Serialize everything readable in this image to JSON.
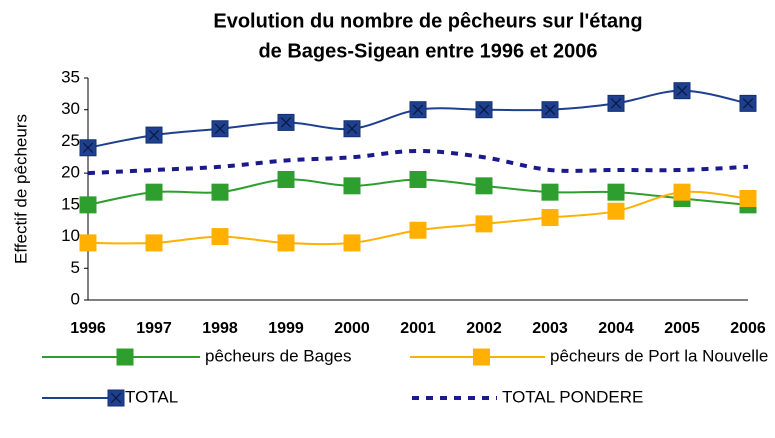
{
  "chart_data": {
    "type": "line",
    "title": [
      "Evolution du nombre de pêcheurs sur l'étang",
      "de Bages-Sigean entre 1996 et 2006"
    ],
    "y_label": "Effectif de pêcheurs",
    "categories": [
      "1996",
      "1997",
      "1998",
      "1999",
      "2000",
      "2001",
      "2002",
      "2003",
      "2004",
      "2005",
      "2006"
    ],
    "series": [
      {
        "name": "pêcheurs de Bages",
        "color": "#2e9e2e",
        "marker": "square",
        "values": [
          15,
          17,
          17,
          19,
          18,
          19,
          18,
          17,
          17,
          16,
          15
        ]
      },
      {
        "name": "pêcheurs de Port la Nouvelle",
        "color": "#ffb000",
        "marker": "square",
        "values": [
          9,
          9,
          10,
          9,
          9,
          11,
          12,
          13,
          14,
          17,
          16
        ]
      },
      {
        "name": "TOTAL",
        "color": "#1f3f8f",
        "marker": "square-x",
        "values": [
          24,
          26,
          27,
          28,
          27,
          30,
          30,
          30,
          31,
          33,
          31
        ]
      },
      {
        "name": "TOTAL PONDERE",
        "color": "#1a1a8c",
        "dashed": true,
        "values": [
          20,
          20.5,
          21,
          22,
          22.5,
          23.5,
          22.5,
          20.5,
          20.5,
          20.5,
          21
        ]
      }
    ],
    "ylim": [
      0,
      35
    ],
    "yticks": [
      0,
      5,
      10,
      15,
      20,
      25,
      30,
      35
    ],
    "grid": false,
    "smooth": true,
    "legend": "bottom"
  }
}
